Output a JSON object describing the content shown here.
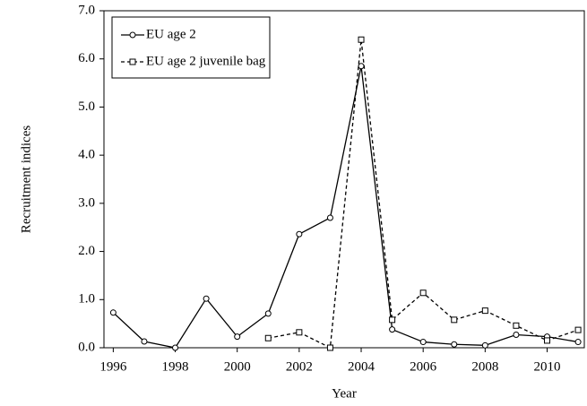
{
  "chart_data": {
    "type": "line",
    "x_label": "Year",
    "y_label": "Recruitment indices",
    "x": [
      1996,
      1997,
      1998,
      1999,
      2000,
      2001,
      2002,
      2003,
      2004,
      2005,
      2006,
      2007,
      2008,
      2009,
      2010,
      2011
    ],
    "series": [
      {
        "name": "EU age 2",
        "color": "#000000",
        "line_style": "solid",
        "marker": "circle",
        "values": [
          0.73,
          0.13,
          0.0,
          1.02,
          0.23,
          0.71,
          2.36,
          2.7,
          5.85,
          0.38,
          0.12,
          0.07,
          0.05,
          0.27,
          0.23,
          0.12
        ]
      },
      {
        "name": "EU age 2 juvenile bag",
        "color": "#000000",
        "line_style": "dashed",
        "marker": "square",
        "values": [
          null,
          null,
          null,
          null,
          null,
          0.2,
          0.32,
          0.0,
          6.4,
          0.58,
          1.14,
          0.58,
          0.77,
          0.46,
          0.15,
          0.37
        ]
      }
    ],
    "xlim": [
      1995.7,
      2011.2
    ],
    "xticks": [
      1996,
      1998,
      2000,
      2002,
      2004,
      2006,
      2008,
      2010
    ],
    "ylim": [
      0,
      7
    ],
    "yticks": [
      {
        "value": 0,
        "label": "0.0"
      },
      {
        "value": 1,
        "label": "1.0"
      },
      {
        "value": 2,
        "label": "2.0"
      },
      {
        "value": 3,
        "label": "3.0"
      },
      {
        "value": 4,
        "label": "4.0"
      },
      {
        "value": 5,
        "label": "5.0"
      },
      {
        "value": 6,
        "label": "6.0"
      },
      {
        "value": 7,
        "label": "7.0"
      }
    ],
    "grid": false,
    "legend": "upper left"
  }
}
